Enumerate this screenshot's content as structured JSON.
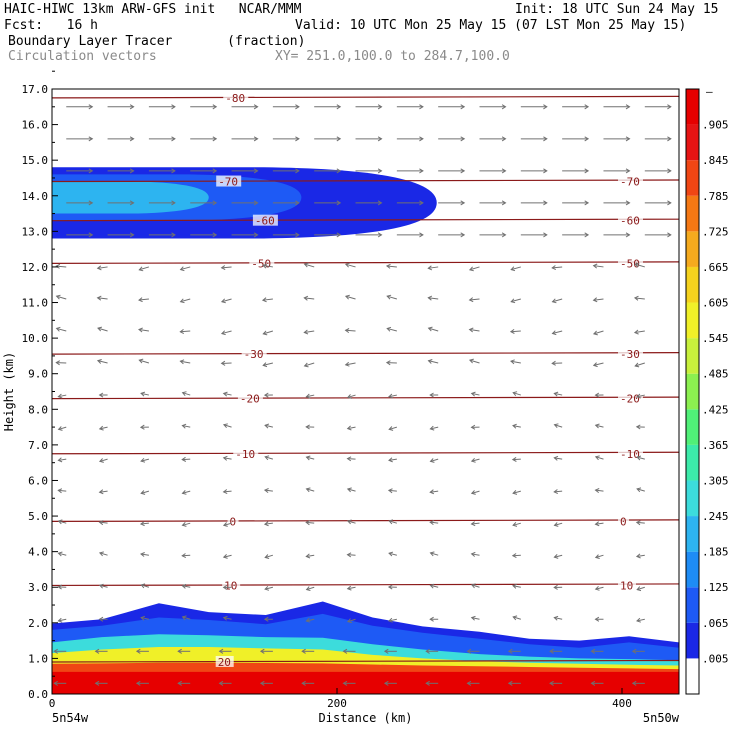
{
  "header": {
    "model_line": "HAIC-HIWC 13km ARW-GFS init   NCAR/MMM",
    "init_line": "Init: 18 UTC Sun 24 May 15",
    "fcst_line": "Fcst:   16 h",
    "valid_line": "Valid: 10 UTC Mon 25 May 15 (07 LST Mon 25 May 15)",
    "field_line": "Boundary Layer Tracer       (fraction)",
    "vector_line": "Circulation vectors",
    "xy_line": "XY= 251.0,100.0 to 284.7,100.0"
  },
  "chart_data": {
    "type": "heatmap",
    "title": "Boundary Layer Tracer",
    "units": "(fraction)",
    "xlabel": "Distance (km)",
    "ylabel": "Height (km)",
    "xlim": [
      0,
      440
    ],
    "ylim": [
      0,
      17
    ],
    "x_ticks": [
      0,
      200,
      400
    ],
    "y_ticks": [
      "0.0",
      "1.0",
      "2.0",
      "3.0",
      "4.0",
      "5.0",
      "6.0",
      "7.0",
      "8.0",
      "9.0",
      "10.0",
      "11.0",
      "12.0",
      "13.0",
      "14.0",
      "15.0",
      "16.0",
      "17.0"
    ],
    "x_endpoints": [
      "5n54w",
      "5n50w"
    ],
    "colorbar": {
      "labels": [
        ".005",
        ".065",
        ".125",
        ".185",
        ".245",
        ".305",
        ".365",
        ".425",
        ".485",
        ".545",
        ".605",
        ".665",
        ".725",
        ".785",
        ".845",
        ".905"
      ],
      "top_label": "–",
      "colors": [
        "#ffffff",
        "#1a28e6",
        "#1e5af5",
        "#1e8cf5",
        "#2db4f0",
        "#3cdcdc",
        "#3cebaa",
        "#50f078",
        "#8cf050",
        "#c8f03c",
        "#f0f028",
        "#f5d21e",
        "#f5aa1e",
        "#f57814",
        "#f04614",
        "#e61414",
        "#e60000"
      ]
    },
    "tracer_bands": [
      {
        "value": 0.99,
        "top_km": [
          0.62,
          0.62,
          0.62,
          0.62,
          0.62,
          0.62,
          0.62,
          0.62,
          0.62,
          0.62,
          0.62,
          0.62,
          0.62
        ]
      },
      {
        "value": 0.8,
        "top_km": [
          0.85,
          0.86,
          0.88,
          0.88,
          0.87,
          0.86,
          0.83,
          0.8,
          0.78,
          0.76,
          0.74,
          0.72,
          0.7
        ]
      },
      {
        "value": 0.55,
        "top_km": [
          1.15,
          1.25,
          1.32,
          1.32,
          1.28,
          1.25,
          1.1,
          1.0,
          0.92,
          0.88,
          0.85,
          0.82,
          0.8
        ]
      },
      {
        "value": 0.3,
        "top_km": [
          1.45,
          1.6,
          1.68,
          1.65,
          1.6,
          1.58,
          1.4,
          1.25,
          1.12,
          1.05,
          1.0,
          0.98,
          0.95
        ]
      },
      {
        "value": 0.1,
        "top_km": [
          1.8,
          1.92,
          2.15,
          2.08,
          1.96,
          2.25,
          1.92,
          1.72,
          1.55,
          1.4,
          1.3,
          1.45,
          1.3
        ]
      },
      {
        "value": 0.01,
        "top_km": [
          1.98,
          2.1,
          2.55,
          2.3,
          2.22,
          2.6,
          2.15,
          1.9,
          1.75,
          1.55,
          1.5,
          1.62,
          1.45
        ]
      }
    ],
    "band_x_km": [
      0,
      35,
      75,
      110,
      150,
      190,
      225,
      260,
      300,
      335,
      370,
      405,
      440
    ],
    "upper_plume": [
      {
        "value": 0.05,
        "x_end_km": 270,
        "y_bottom_km": 12.8,
        "y_top_km": 14.8
      },
      {
        "value": 0.12,
        "x_end_km": 175,
        "y_bottom_km": 13.3,
        "y_top_km": 14.6
      },
      {
        "value": 0.2,
        "x_end_km": 110,
        "y_bottom_km": 13.5,
        "y_top_km": 14.4
      }
    ],
    "contours": [
      {
        "label": "-80",
        "y_km": 16.75
      },
      {
        "label": "-70",
        "y_km": 14.4
      },
      {
        "label": "-60",
        "y_km": 13.3
      },
      {
        "label": "-50",
        "y_km": 12.1
      },
      {
        "label": "-30",
        "y_km": 9.55
      },
      {
        "label": "-20",
        "y_km": 8.3
      },
      {
        "label": "-10",
        "y_km": 6.75
      },
      {
        "label": "0",
        "y_km": 4.85
      },
      {
        "label": "10",
        "y_km": 3.05
      },
      {
        "label": "20",
        "y_km": 0.9
      }
    ],
    "grid_lines": true
  }
}
